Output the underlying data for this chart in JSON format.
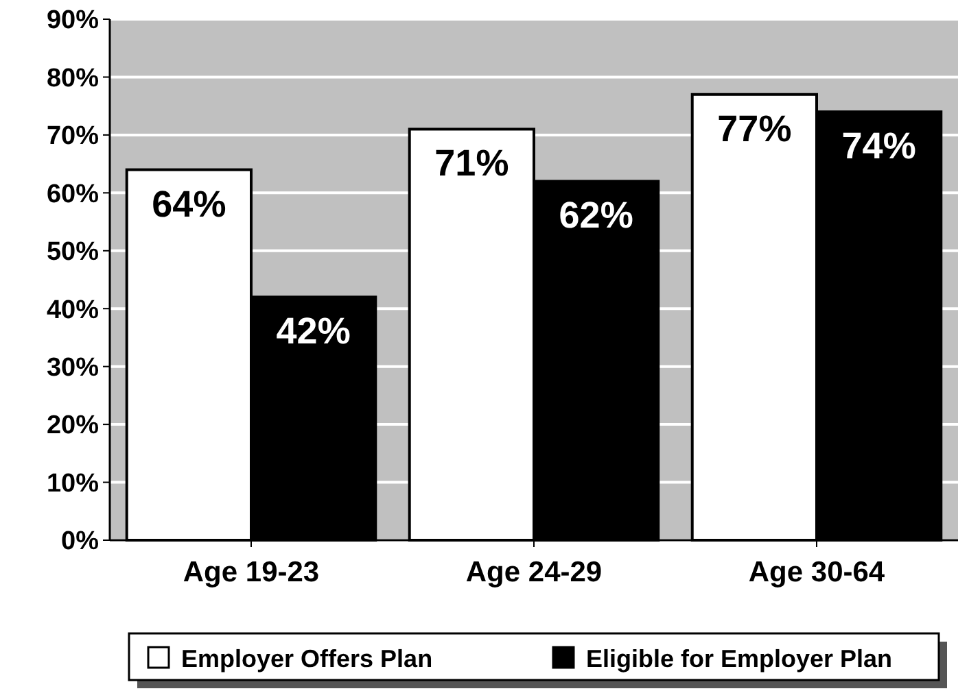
{
  "chart_data": {
    "type": "bar",
    "categories": [
      "Age 19-23",
      "Age 24-29",
      "Age 30-64"
    ],
    "series": [
      {
        "name": "Employer Offers Plan",
        "color": "#ffffff",
        "values": [
          64,
          71,
          77
        ],
        "value_labels": [
          "64%",
          "71%",
          "77%"
        ]
      },
      {
        "name": "Eligible for Employer Plan",
        "color": "#000000",
        "values": [
          42,
          62,
          74
        ],
        "value_labels": [
          "42%",
          "62%",
          "74%"
        ]
      }
    ],
    "ylim": [
      0,
      90
    ],
    "yticks": [
      {
        "value": 0,
        "label": "0%"
      },
      {
        "value": 10,
        "label": "10%"
      },
      {
        "value": 20,
        "label": "20%"
      },
      {
        "value": 30,
        "label": "30%"
      },
      {
        "value": 40,
        "label": "40%"
      },
      {
        "value": 50,
        "label": "50%"
      },
      {
        "value": 60,
        "label": "60%"
      },
      {
        "value": 70,
        "label": "70%"
      },
      {
        "value": 80,
        "label": "80%"
      },
      {
        "value": 90,
        "label": "90%"
      }
    ],
    "grid": "y",
    "legend": "bottom"
  }
}
